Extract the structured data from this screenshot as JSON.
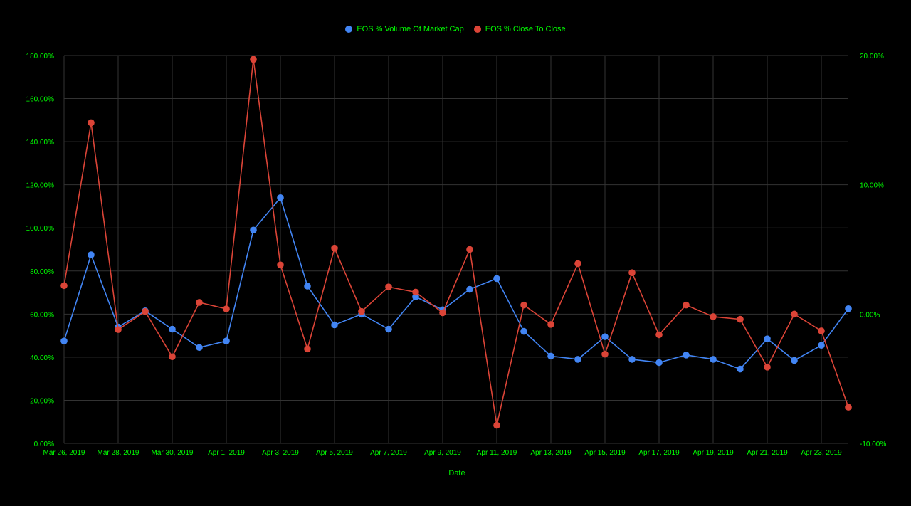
{
  "chart_data": {
    "type": "line",
    "xlabel": "Date",
    "x": [
      "Mar 26, 2019",
      "Mar 27, 2019",
      "Mar 28, 2019",
      "Mar 29, 2019",
      "Mar 30, 2019",
      "Mar 31, 2019",
      "Apr 1, 2019",
      "Apr 2, 2019",
      "Apr 3, 2019",
      "Apr 4, 2019",
      "Apr 5, 2019",
      "Apr 6, 2019",
      "Apr 7, 2019",
      "Apr 8, 2019",
      "Apr 9, 2019",
      "Apr 10, 2019",
      "Apr 11, 2019",
      "Apr 12, 2019",
      "Apr 13, 2019",
      "Apr 14, 2019",
      "Apr 15, 2019",
      "Apr 16, 2019",
      "Apr 17, 2019",
      "Apr 18, 2019",
      "Apr 19, 2019",
      "Apr 20, 2019",
      "Apr 21, 2019",
      "Apr 22, 2019",
      "Apr 23, 2019",
      "Apr 24, 2019"
    ],
    "x_tick_labels": [
      "Mar 26, 2019",
      "Mar 28, 2019",
      "Mar 30, 2019",
      "Apr 1, 2019",
      "Apr 3, 2019",
      "Apr 5, 2019",
      "Apr 7, 2019",
      "Apr 9, 2019",
      "Apr 11, 2019",
      "Apr 13, 2019",
      "Apr 15, 2019",
      "Apr 17, 2019",
      "Apr 19, 2019",
      "Apr 21, 2019",
      "Apr 23, 2019"
    ],
    "y_left": {
      "ylim": [
        0,
        180
      ],
      "tick_labels": [
        "0.00%",
        "20.00%",
        "40.00%",
        "60.00%",
        "80.00%",
        "100.00%",
        "120.00%",
        "140.00%",
        "160.00%",
        "180.00%"
      ]
    },
    "y_right": {
      "ylim": [
        -10,
        20
      ],
      "tick_labels": [
        "-10.00%",
        "0.00%",
        "10.00%",
        "20.00%"
      ]
    },
    "grid": true,
    "legend_position": "top-center",
    "series": [
      {
        "name": "EOS % Volume Of Market Cap",
        "axis": "left",
        "color": "#4285f4",
        "values": [
          47.5,
          87.5,
          54.0,
          61.5,
          53.0,
          44.5,
          47.5,
          99.0,
          114.0,
          73.0,
          55.0,
          60.0,
          53.0,
          68.0,
          62.0,
          71.5,
          76.5,
          52.0,
          40.5,
          39.0,
          49.5,
          39.0,
          37.5,
          41.0,
          39.0,
          34.5,
          48.5,
          38.5,
          45.5,
          62.5
        ]
      },
      {
        "name": "EOS % Close To Close",
        "axis": "right",
        "color": "#db4437",
        "values": [
          2.2,
          14.8,
          -1.2,
          0.2,
          -3.3,
          0.9,
          0.4,
          19.7,
          3.8,
          -2.7,
          5.1,
          0.2,
          2.1,
          1.7,
          0.1,
          5.0,
          -8.6,
          0.7,
          -0.8,
          3.9,
          -3.1,
          3.2,
          -1.6,
          0.7,
          -0.2,
          -0.4,
          -4.1,
          0.0,
          -1.3,
          -7.2
        ]
      }
    ],
    "colors": {
      "background": "#000000",
      "text": "#00ff00",
      "grid": "#333333"
    }
  }
}
